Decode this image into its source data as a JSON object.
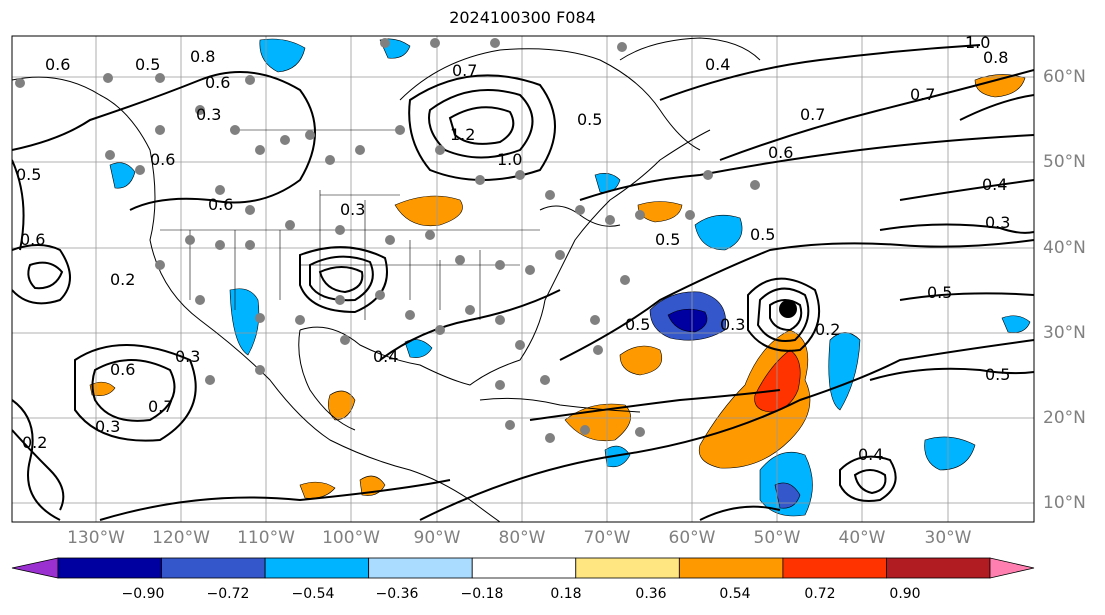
{
  "title": "2024100300 F084",
  "map": {
    "lon_labels": [
      "130°W",
      "120°W",
      "110°W",
      "100°W",
      "90°W",
      "80°W",
      "70°W",
      "60°W",
      "50°W",
      "40°W",
      "30°W"
    ],
    "lat_labels": [
      "60°N",
      "50°N",
      "40°N",
      "30°N",
      "20°N",
      "10°N"
    ],
    "contour_labels": [
      "0.5",
      "0.6",
      "0.8",
      "0.7",
      "0.3",
      "0.5",
      "0.4",
      "1.0",
      "0.8",
      "0.7",
      "0.6",
      "0.4",
      "0.3",
      "0.5",
      "0.5",
      "0.2",
      "0.6",
      "0.7",
      "0.3",
      "0.2",
      "0.5",
      "0.4",
      "0.5",
      "0.3",
      "0.3",
      "1.2",
      "1.0",
      "0.6",
      "0.6",
      "0.6",
      "0.5",
      "0.5",
      "0.4",
      "0.6",
      "0.2",
      "0.3",
      "0.7"
    ]
  },
  "colorbar": {
    "colors": [
      "#9b30d0",
      "#0000a0",
      "#3458cc",
      "#00b4ff",
      "#aadcff",
      "#ffffff",
      "#ffe680",
      "#ff9900",
      "#ff3300",
      "#b01c22",
      "#ff80b0"
    ],
    "ticks": [
      "−0.90",
      "−0.72",
      "−0.54",
      "−0.36",
      "−0.18",
      "0.18",
      "0.36",
      "0.54",
      "0.72",
      "0.90"
    ]
  }
}
